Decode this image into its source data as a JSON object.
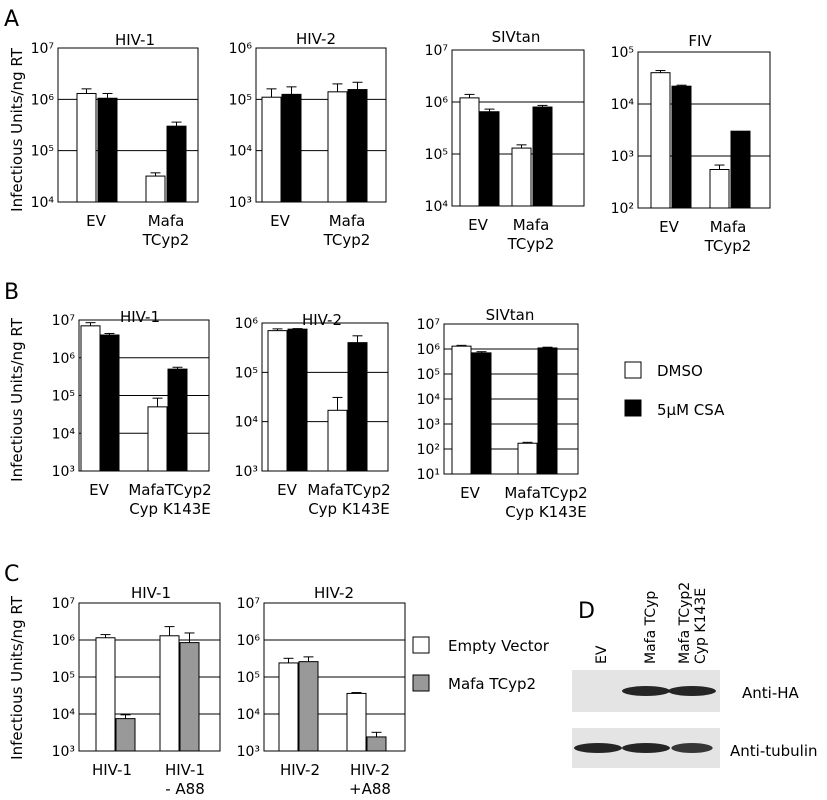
{
  "panel_letters": {
    "A": "A",
    "B": "B",
    "C": "C",
    "D": "D"
  },
  "shared_ylabel": "Infectious Units/ng RT",
  "legend_B": [
    {
      "label": "DMSO",
      "color": "#ffffff"
    },
    {
      "label": "5µM CSA",
      "color": "#000000"
    }
  ],
  "legend_C": [
    {
      "label": "Empty Vector",
      "color": "#ffffff"
    },
    {
      "label": "Mafa TCyp2",
      "color": "#999999"
    }
  ],
  "western_blot": {
    "lanes": [
      "EV",
      "Mafa TCyp",
      "Mafa TCyp2 Cyp K143E"
    ],
    "rows": [
      {
        "label": "Anti-HA",
        "band_intensity": [
          0,
          1,
          1
        ]
      },
      {
        "label": "Anti-tubulin",
        "band_intensity": [
          1,
          1,
          0.85
        ]
      }
    ]
  },
  "colors": {
    "open_bar": "#ffffff",
    "csa_bar": "#000000",
    "tcyp2_bar": "#999999",
    "axis": "#000000"
  },
  "chart_data": [
    {
      "id": "A-HIV1",
      "type": "bar",
      "title": "HIV-1",
      "log_scale": true,
      "ylim_exp": [
        4,
        7
      ],
      "categories": [
        [
          "EV"
        ],
        [
          "Mafa",
          "TCyp2"
        ]
      ],
      "series": [
        {
          "name": "DMSO",
          "values": [
            1300000,
            32000
          ],
          "errors": [
            300000,
            5000
          ]
        },
        {
          "name": "5µM CSA",
          "values": [
            1050000,
            300000
          ],
          "errors": [
            250000,
            60000
          ]
        }
      ]
    },
    {
      "id": "A-HIV2",
      "type": "bar",
      "title": "HIV-2",
      "log_scale": true,
      "ylim_exp": [
        3,
        6
      ],
      "categories": [
        [
          "EV"
        ],
        [
          "Mafa",
          "TCyp2"
        ]
      ],
      "series": [
        {
          "name": "DMSO",
          "values": [
            110000,
            140000
          ],
          "errors": [
            50000,
            60000
          ]
        },
        {
          "name": "5µM CSA",
          "values": [
            125000,
            155000
          ],
          "errors": [
            50000,
            60000
          ]
        }
      ]
    },
    {
      "id": "A-SIVtan",
      "type": "bar",
      "title": "SIVtan",
      "log_scale": true,
      "ylim_exp": [
        4,
        7
      ],
      "categories": [
        [
          "EV"
        ],
        [
          "Mafa",
          "TCyp2"
        ]
      ],
      "series": [
        {
          "name": "DMSO",
          "values": [
            1200000,
            130000
          ],
          "errors": [
            200000,
            20000
          ]
        },
        {
          "name": "5µM CSA",
          "values": [
            650000,
            800000
          ],
          "errors": [
            80000,
            60000
          ]
        }
      ]
    },
    {
      "id": "A-FIV",
      "type": "bar",
      "title": "FIV",
      "log_scale": true,
      "ylim_exp": [
        2,
        5
      ],
      "categories": [
        [
          "EV"
        ],
        [
          "Mafa",
          "TCyp2"
        ]
      ],
      "series": [
        {
          "name": "DMSO",
          "values": [
            40000,
            550
          ],
          "errors": [
            4000,
            120
          ]
        },
        {
          "name": "5µM CSA",
          "values": [
            22000,
            3000
          ],
          "errors": [
            1000,
            0
          ]
        }
      ]
    },
    {
      "id": "B-HIV1",
      "type": "bar",
      "title": "HIV-1",
      "log_scale": true,
      "ylim_exp": [
        3,
        7
      ],
      "categories": [
        [
          "EV"
        ],
        [
          "MafaTCyp2",
          "Cyp K143E"
        ]
      ],
      "series": [
        {
          "name": "DMSO",
          "values": [
            7000000,
            50000
          ],
          "errors": [
            1500000,
            35000
          ]
        },
        {
          "name": "5µM CSA",
          "values": [
            4000000,
            500000
          ],
          "errors": [
            400000,
            60000
          ]
        }
      ]
    },
    {
      "id": "B-HIV2",
      "type": "bar",
      "title": "HIV-2",
      "log_scale": true,
      "ylim_exp": [
        3,
        6
      ],
      "categories": [
        [
          "EV"
        ],
        [
          "MafaTCyp2",
          "Cyp K143E"
        ]
      ],
      "series": [
        {
          "name": "DMSO",
          "values": [
            700000,
            17000
          ],
          "errors": [
            60000,
            14000
          ]
        },
        {
          "name": "5µM CSA",
          "values": [
            750000,
            400000
          ],
          "errors": [
            20000,
            150000
          ]
        }
      ]
    },
    {
      "id": "B-SIVtan",
      "type": "bar",
      "title": "SIVtan",
      "log_scale": true,
      "ylim_exp": [
        1,
        7
      ],
      "categories": [
        [
          "EV"
        ],
        [
          "MafaTCyp2",
          "Cyp K143E"
        ]
      ],
      "series": [
        {
          "name": "DMSO",
          "values": [
            1300000,
            170
          ],
          "errors": [
            100000,
            15
          ]
        },
        {
          "name": "5µM CSA",
          "values": [
            700000,
            1100000
          ],
          "errors": [
            80000,
            80000
          ]
        }
      ]
    },
    {
      "id": "C-HIV1",
      "type": "bar",
      "title": "HIV-1",
      "log_scale": true,
      "ylim_exp": [
        3,
        7
      ],
      "categories": [
        [
          "HIV-1"
        ],
        [
          "HIV-1",
          "- A88"
        ]
      ],
      "series": [
        {
          "name": "Empty Vector",
          "values": [
            1150000,
            1300000
          ],
          "errors": [
            250000,
            1000000
          ]
        },
        {
          "name": "Mafa TCyp2",
          "values": [
            7500,
            850000
          ],
          "errors": [
            2000,
            700000
          ]
        }
      ]
    },
    {
      "id": "C-HIV2",
      "type": "bar",
      "title": "HIV-2",
      "log_scale": true,
      "ylim_exp": [
        3,
        7
      ],
      "categories": [
        [
          "HIV-2"
        ],
        [
          "HIV-2",
          "+A88"
        ]
      ],
      "series": [
        {
          "name": "Empty Vector",
          "values": [
            240000,
            36000
          ],
          "errors": [
            80000,
            2000
          ]
        },
        {
          "name": "Mafa TCyp2",
          "values": [
            260000,
            2400
          ],
          "errors": [
            90000,
            800
          ]
        }
      ]
    }
  ]
}
